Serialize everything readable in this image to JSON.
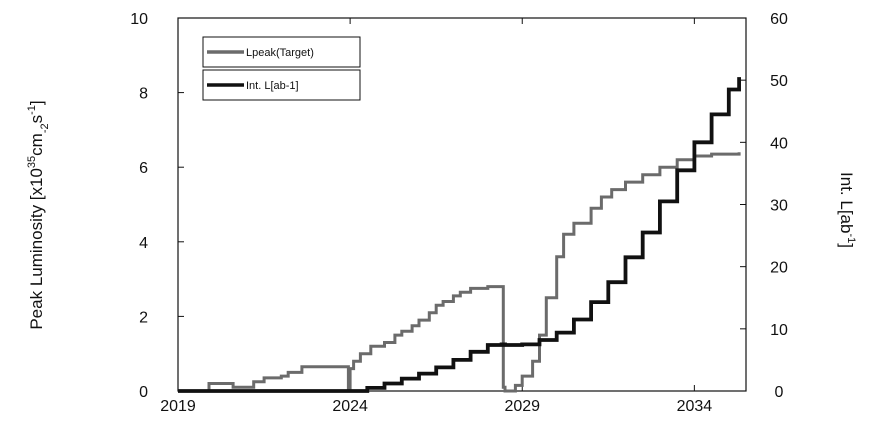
{
  "chart_data": {
    "type": "line",
    "title": "",
    "xlabel": "",
    "xlim": [
      2019,
      2035.5
    ],
    "x_ticks": [
      "2019",
      "2024",
      "2029",
      "2034"
    ],
    "y_left": {
      "label_parts": [
        "Peak Luminosity [x10",
        "35",
        "cm",
        "-2",
        "s",
        "-1",
        "]"
      ],
      "ylim": [
        0,
        10
      ],
      "ticks": [
        "0",
        "2",
        "4",
        "6",
        "8",
        "10"
      ]
    },
    "y_right": {
      "label_parts": [
        "Int. L[ab",
        "-1",
        "]"
      ],
      "ylim": [
        0,
        60
      ],
      "ticks": [
        "0",
        "10",
        "20",
        "30",
        "40",
        "50",
        "60"
      ]
    },
    "grid": false,
    "legend_position": "top-left",
    "series": [
      {
        "name": "Lpeak(Target)",
        "axis": "left",
        "color": "#6b6b6b",
        "x": [
          2019.0,
          2019.7,
          2019.9,
          2020.5,
          2020.6,
          2021.0,
          2021.2,
          2021.5,
          2022.0,
          2022.2,
          2022.6,
          2023.9,
          2023.95,
          2024.0,
          2024.1,
          2024.3,
          2024.6,
          2025.0,
          2025.3,
          2025.5,
          2025.8,
          2026.0,
          2026.3,
          2026.5,
          2026.7,
          2027.0,
          2027.2,
          2027.5,
          2028.0,
          2028.4,
          2028.45,
          2028.5,
          2028.8,
          2029.0,
          2029.3,
          2029.5,
          2029.7,
          2030.0,
          2030.2,
          2030.5,
          2031.0,
          2031.3,
          2031.6,
          2032.0,
          2032.5,
          2033.0,
          2033.5,
          2034.0,
          2034.5,
          2035.3
        ],
        "values": [
          0.0,
          0.0,
          0.2,
          0.2,
          0.1,
          0.1,
          0.25,
          0.35,
          0.4,
          0.5,
          0.65,
          0.65,
          0.0,
          0.6,
          0.8,
          1.0,
          1.2,
          1.3,
          1.5,
          1.6,
          1.75,
          1.9,
          2.1,
          2.3,
          2.4,
          2.55,
          2.65,
          2.75,
          2.8,
          2.8,
          0.1,
          0.0,
          0.15,
          0.4,
          0.8,
          1.5,
          2.5,
          3.6,
          4.2,
          4.5,
          4.9,
          5.2,
          5.4,
          5.6,
          5.8,
          6.0,
          6.2,
          6.3,
          6.35,
          6.4
        ]
      },
      {
        "name": "Int. L[ab-1]",
        "axis": "right",
        "color": "#111111",
        "x": [
          2019.0,
          2020.0,
          2021.0,
          2022.0,
          2023.0,
          2023.95,
          2024.5,
          2025.0,
          2025.5,
          2026.0,
          2026.5,
          2027.0,
          2027.5,
          2028.0,
          2028.4,
          2028.5,
          2029.0,
          2029.5,
          2030.0,
          2030.5,
          2031.0,
          2031.5,
          2032.0,
          2032.5,
          2033.0,
          2033.5,
          2034.0,
          2034.5,
          2035.0,
          2035.3
        ],
        "values": [
          0.0,
          0.0,
          0.0,
          0.0,
          0.0,
          0.0,
          0.5,
          1.2,
          2.0,
          2.8,
          3.8,
          5.0,
          6.3,
          7.4,
          7.5,
          7.4,
          7.5,
          8.2,
          9.4,
          11.5,
          14.3,
          17.5,
          21.5,
          25.5,
          30.5,
          35.5,
          40.0,
          44.5,
          48.5,
          50.5
        ]
      }
    ]
  }
}
